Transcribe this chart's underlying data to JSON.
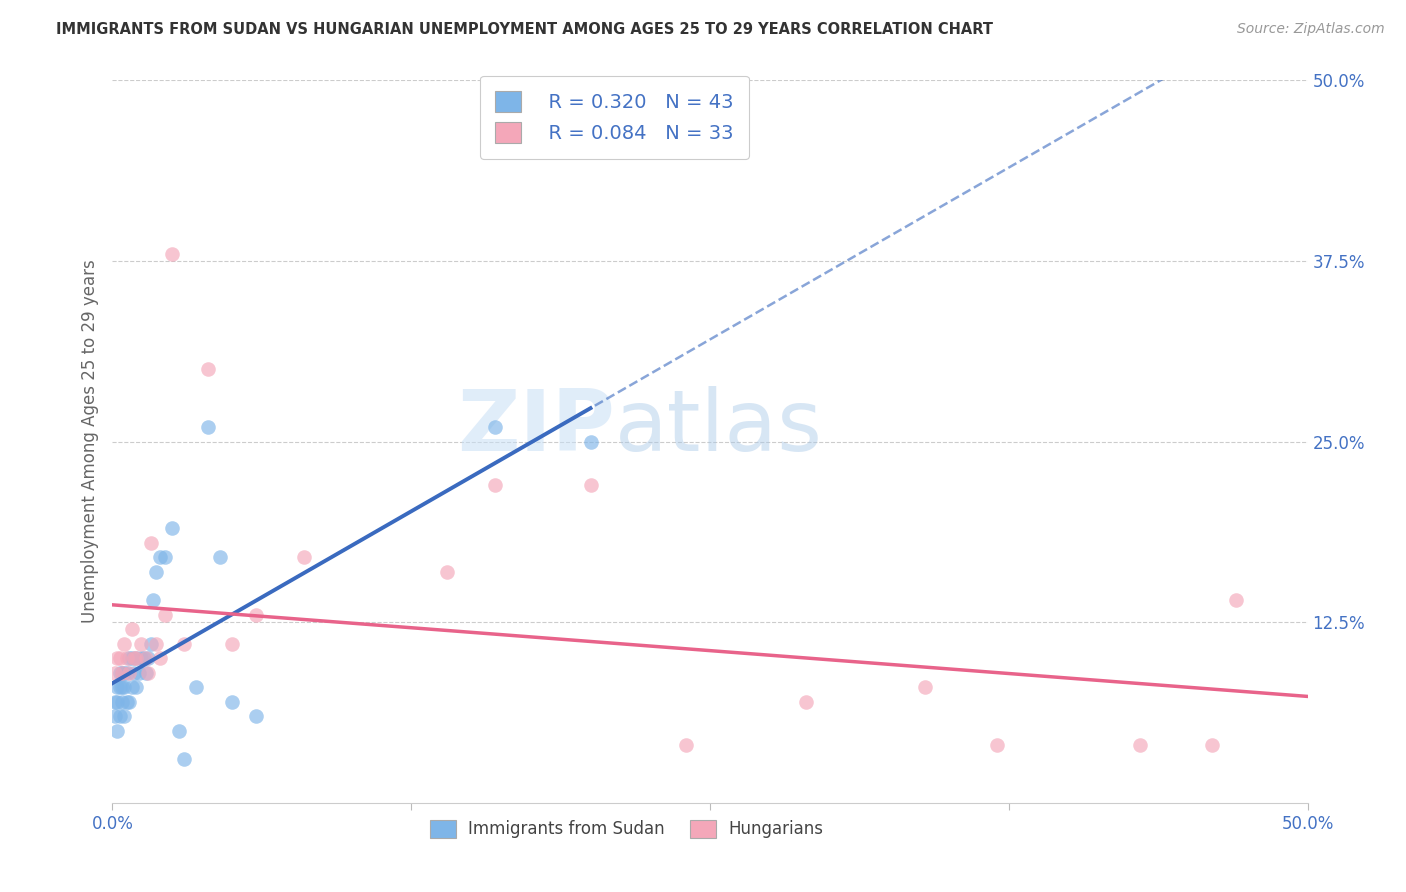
{
  "title": "IMMIGRANTS FROM SUDAN VS HUNGARIAN UNEMPLOYMENT AMONG AGES 25 TO 29 YEARS CORRELATION CHART",
  "source": "Source: ZipAtlas.com",
  "ylabel": "Unemployment Among Ages 25 to 29 years",
  "xlim": [
    0.0,
    0.5
  ],
  "ylim": [
    0.0,
    0.5
  ],
  "xticks": [
    0.0,
    0.125,
    0.25,
    0.375,
    0.5
  ],
  "xticklabels": [
    "0.0%",
    "",
    "",
    "",
    "50.0%"
  ],
  "yticks_right": [
    0.125,
    0.25,
    0.375,
    0.5
  ],
  "yticklabels_right": [
    "12.5%",
    "25.0%",
    "37.5%",
    "50.0%"
  ],
  "sudan_color": "#7eb5e8",
  "hungarian_color": "#f4a7b9",
  "sudan_line_color": "#3a6abf",
  "hungarian_line_color": "#e8638a",
  "legend_R1": "R = 0.320",
  "legend_N1": "N = 43",
  "legend_R2": "R = 0.084",
  "legend_N2": "N = 33",
  "watermark_zip": "ZIP",
  "watermark_atlas": "atlas",
  "sudan_scatter_x": [
    0.001,
    0.001,
    0.002,
    0.002,
    0.002,
    0.003,
    0.003,
    0.003,
    0.004,
    0.004,
    0.004,
    0.005,
    0.005,
    0.005,
    0.006,
    0.006,
    0.007,
    0.007,
    0.008,
    0.008,
    0.009,
    0.01,
    0.01,
    0.011,
    0.012,
    0.013,
    0.014,
    0.015,
    0.016,
    0.017,
    0.018,
    0.02,
    0.022,
    0.025,
    0.028,
    0.03,
    0.035,
    0.04,
    0.045,
    0.05,
    0.06,
    0.16,
    0.2
  ],
  "sudan_scatter_y": [
    0.06,
    0.07,
    0.05,
    0.07,
    0.08,
    0.06,
    0.08,
    0.09,
    0.07,
    0.08,
    0.09,
    0.06,
    0.08,
    0.09,
    0.07,
    0.09,
    0.07,
    0.1,
    0.08,
    0.1,
    0.09,
    0.08,
    0.1,
    0.09,
    0.1,
    0.1,
    0.09,
    0.1,
    0.11,
    0.14,
    0.16,
    0.17,
    0.17,
    0.19,
    0.05,
    0.03,
    0.08,
    0.26,
    0.17,
    0.07,
    0.06,
    0.26,
    0.25
  ],
  "hungarian_scatter_x": [
    0.001,
    0.002,
    0.003,
    0.004,
    0.005,
    0.006,
    0.007,
    0.008,
    0.009,
    0.01,
    0.012,
    0.014,
    0.015,
    0.016,
    0.018,
    0.02,
    0.022,
    0.025,
    0.03,
    0.04,
    0.05,
    0.06,
    0.08,
    0.14,
    0.16,
    0.2,
    0.24,
    0.29,
    0.34,
    0.37,
    0.43,
    0.46,
    0.47
  ],
  "hungarian_scatter_y": [
    0.09,
    0.1,
    0.1,
    0.09,
    0.11,
    0.1,
    0.09,
    0.12,
    0.1,
    0.1,
    0.11,
    0.1,
    0.09,
    0.18,
    0.11,
    0.1,
    0.13,
    0.38,
    0.11,
    0.3,
    0.11,
    0.13,
    0.17,
    0.16,
    0.22,
    0.22,
    0.04,
    0.07,
    0.08,
    0.04,
    0.04,
    0.04,
    0.14
  ]
}
